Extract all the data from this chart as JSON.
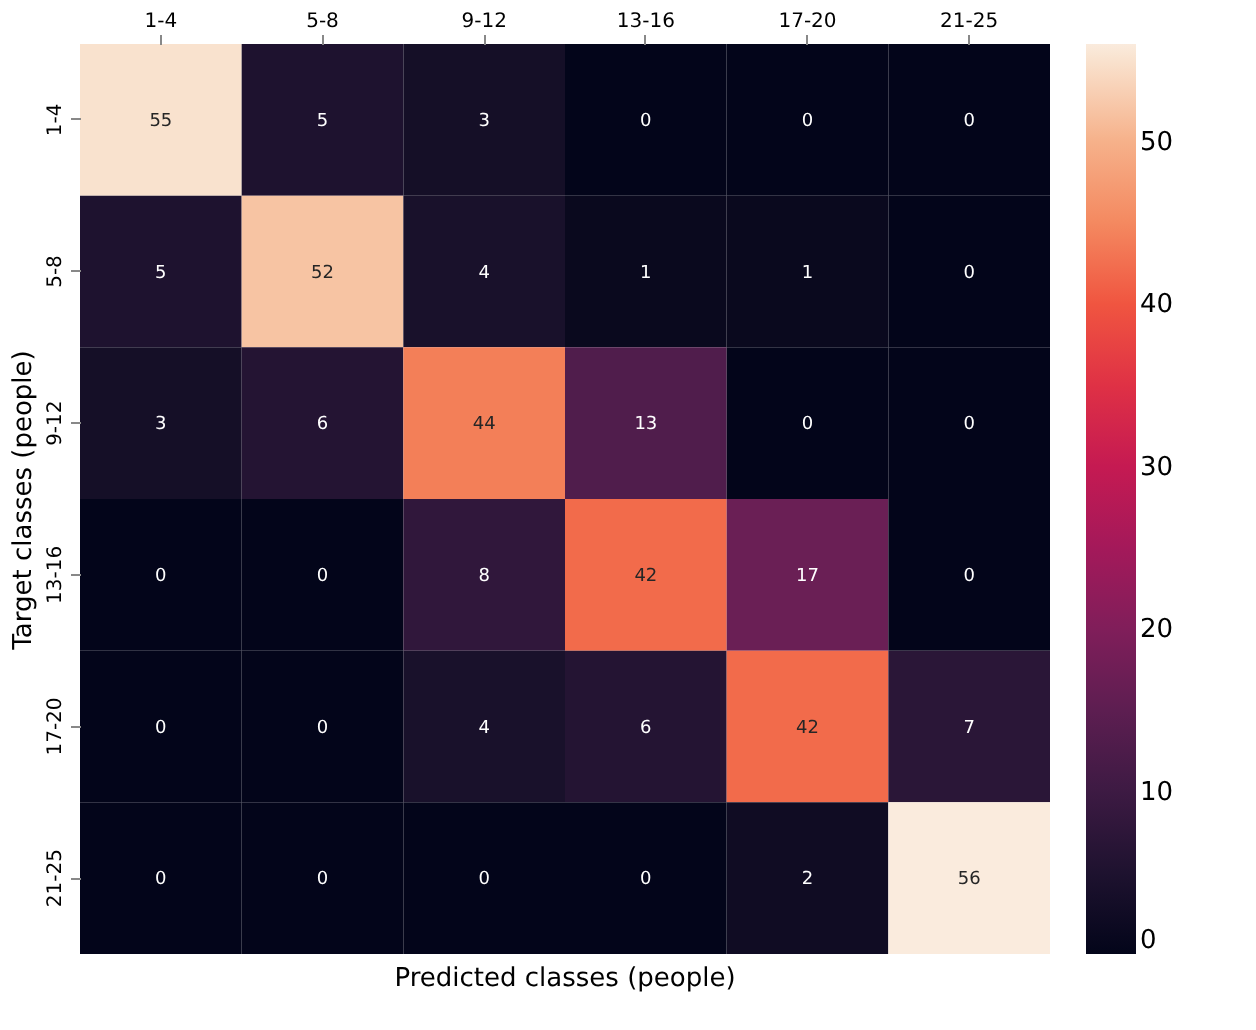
{
  "chart_data": {
    "type": "heatmap",
    "xlabel": "Predicted classes (people)",
    "ylabel": "Target classes (people)",
    "categories": [
      "1-4",
      "5-8",
      "9-12",
      "13-16",
      "17-20",
      "21-25"
    ],
    "y_categories": [
      "1-4",
      "5-8",
      "9-12",
      "13-16",
      "17-20",
      "21-25"
    ],
    "cells": [
      [
        55,
        5,
        3,
        0,
        0,
        0
      ],
      [
        5,
        52,
        4,
        1,
        1,
        0
      ],
      [
        3,
        6,
        44,
        13,
        0,
        0
      ],
      [
        0,
        0,
        8,
        42,
        17,
        0
      ],
      [
        0,
        0,
        4,
        6,
        42,
        7
      ],
      [
        0,
        0,
        0,
        0,
        2,
        56
      ]
    ],
    "data_labels": true,
    "clim": [
      0,
      56
    ],
    "cticks": [
      0,
      10,
      20,
      30,
      40,
      50
    ]
  }
}
